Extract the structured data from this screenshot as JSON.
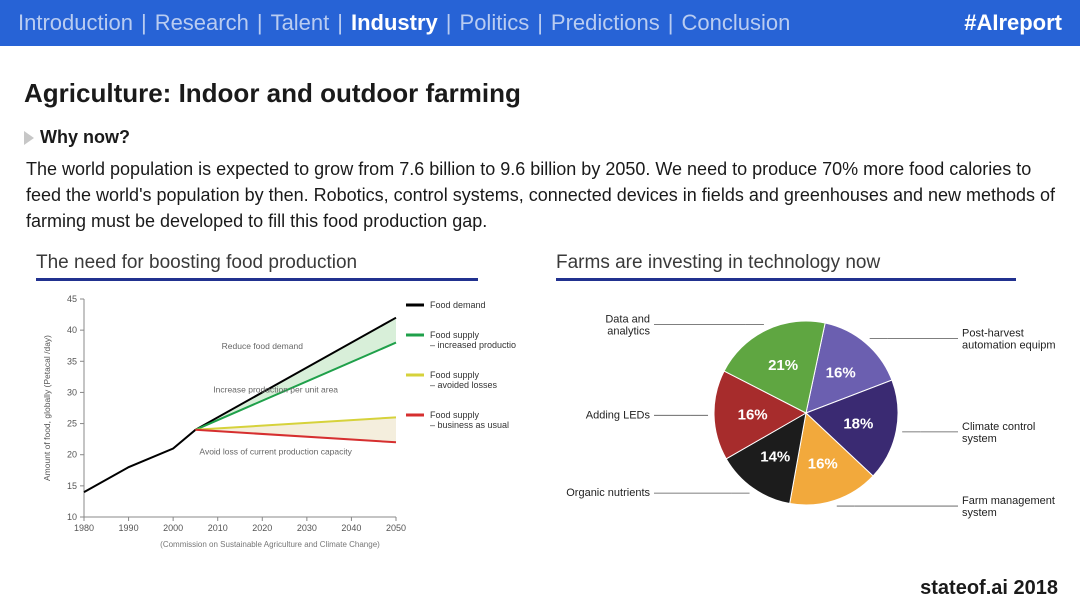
{
  "nav": {
    "items": [
      "Introduction",
      "Research",
      "Talent",
      "Industry",
      "Politics",
      "Predictions",
      "Conclusion"
    ],
    "active_index": 3,
    "hashtag": "#AIreport",
    "bg": "#2763d6",
    "inactive_color": "#b9ccf1",
    "active_color": "#ffffff"
  },
  "title": "Agriculture: Indoor and outdoor farming",
  "subheading": "Why now?",
  "body": "The world population is expected to grow from 7.6 billion to 9.6 billion by 2050. We need to produce 70% more food calories to feed the world's population by then. Robotics, control systems, connected devices in fields and greenhouses and new methods of farming must be developed to fill this food production gap.",
  "footer": "stateof.ai 2018",
  "line_chart": {
    "title": "The need for boosting food production",
    "type": "line-area",
    "x": {
      "ticks": [
        1980,
        1990,
        2000,
        2010,
        2020,
        2030,
        2040,
        2050
      ],
      "lim": [
        1980,
        2050
      ]
    },
    "y": {
      "label": "Amount of food, globally (Petacal /day)",
      "ticks": [
        10,
        15,
        20,
        25,
        30,
        35,
        40,
        45
      ],
      "lim": [
        10,
        45
      ]
    },
    "axis_color": "#888888",
    "grid_color": "#dddddd",
    "tick_font": 9,
    "series": {
      "demand": {
        "color": "#000000",
        "label": "Food demand",
        "pts": [
          [
            1980,
            14
          ],
          [
            1990,
            18
          ],
          [
            2000,
            21
          ],
          [
            2005,
            24
          ],
          [
            2050,
            42
          ]
        ]
      },
      "increased": {
        "color": "#1fa04a",
        "label": "Food supply – increased production",
        "pts": [
          [
            2005,
            24
          ],
          [
            2050,
            38
          ]
        ]
      },
      "avoided": {
        "color": "#d6d23b",
        "label": "Food supply – avoided losses",
        "pts": [
          [
            2005,
            24
          ],
          [
            2050,
            26
          ]
        ]
      },
      "bau": {
        "color": "#d62f2f",
        "label": "Food supply – business as usual",
        "pts": [
          [
            2005,
            24
          ],
          [
            2050,
            22
          ]
        ]
      }
    },
    "area_fills": {
      "top_wedge": "#d8efd9",
      "bottom_wedge": "#f4eedd"
    },
    "annotations": [
      {
        "text": "Reduce food demand",
        "xy": [
          2020,
          37
        ]
      },
      {
        "text": "Increase production per unit area",
        "xy": [
          2023,
          30
        ]
      },
      {
        "text": "Avoid loss of current production capacity",
        "xy": [
          2023,
          20
        ]
      }
    ],
    "caption": "(Commission on Sustainable Agriculture and Climate Change)"
  },
  "pie_chart": {
    "title": "Farms are investing in technology now",
    "type": "pie",
    "slices": [
      {
        "label": "Post-harvest automation equipment",
        "pct": 16,
        "color": "#6b5fb0",
        "label_side": "right"
      },
      {
        "label": "Climate control system",
        "pct": 18,
        "color": "#3a2a72",
        "label_side": "right"
      },
      {
        "label": "Farm management system",
        "pct": 16,
        "color": "#f2a93c",
        "label_side": "right"
      },
      {
        "label": "Organic nutrients",
        "pct": 14,
        "color": "#1c1c1c",
        "label_side": "left"
      },
      {
        "label": "Adding LEDs",
        "pct": 16,
        "color": "#a72c2c",
        "label_side": "left"
      },
      {
        "label": "Data and analytics",
        "pct": 21,
        "color": "#5fa641",
        "label_side": "left"
      }
    ],
    "pct_text_color": "#ffffff",
    "pct_font": 15,
    "label_font": 11,
    "label_color": "#222222",
    "start_angle_deg": -78
  }
}
